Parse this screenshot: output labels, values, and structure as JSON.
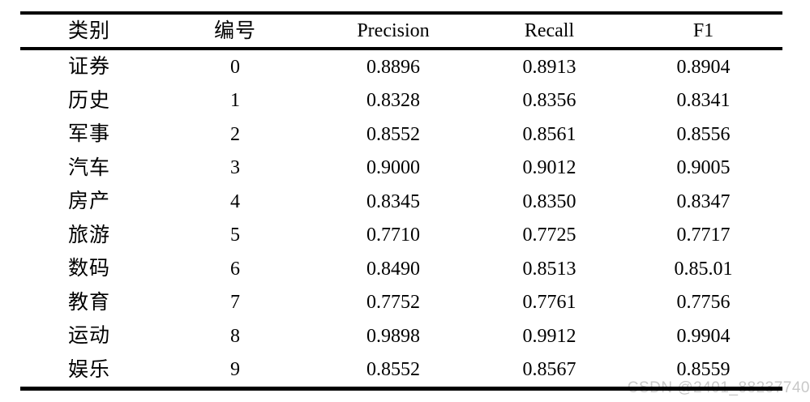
{
  "table": {
    "columns": [
      {
        "key": "category",
        "label": "类别"
      },
      {
        "key": "id",
        "label": "编号"
      },
      {
        "key": "precision",
        "label": "Precision"
      },
      {
        "key": "recall",
        "label": "Recall"
      },
      {
        "key": "f1",
        "label": "F1"
      }
    ],
    "rows": [
      {
        "category": "证券",
        "id": "0",
        "precision": "0.8896",
        "recall": "0.8913",
        "f1": "0.8904"
      },
      {
        "category": "历史",
        "id": "1",
        "precision": "0.8328",
        "recall": "0.8356",
        "f1": "0.8341"
      },
      {
        "category": "军事",
        "id": "2",
        "precision": "0.8552",
        "recall": "0.8561",
        "f1": "0.8556"
      },
      {
        "category": "汽车",
        "id": "3",
        "precision": "0.9000",
        "recall": "0.9012",
        "f1": "0.9005"
      },
      {
        "category": "房产",
        "id": "4",
        "precision": "0.8345",
        "recall": "0.8350",
        "f1": "0.8347"
      },
      {
        "category": "旅游",
        "id": "5",
        "precision": "0.7710",
        "recall": "0.7725",
        "f1": "0.7717"
      },
      {
        "category": "数码",
        "id": "6",
        "precision": "0.8490",
        "recall": "0.8513",
        "f1": "0.85.01"
      },
      {
        "category": "教育",
        "id": "7",
        "precision": "0.7752",
        "recall": "0.7761",
        "f1": "0.7756"
      },
      {
        "category": "运动",
        "id": "8",
        "precision": "0.9898",
        "recall": "0.9912",
        "f1": "0.9904"
      },
      {
        "category": "娱乐",
        "id": "9",
        "precision": "0.8552",
        "recall": "0.8567",
        "f1": "0.8559"
      }
    ]
  },
  "watermark": {
    "text": "CSDN @2401_88237740",
    "color": "#c8c8c8"
  },
  "colors": {
    "text": "#000000",
    "rule": "#000000",
    "background": "#ffffff"
  },
  "chart_data": {
    "type": "table",
    "title": "",
    "columns": [
      "类别",
      "编号",
      "Precision",
      "Recall",
      "F1"
    ],
    "rows": [
      [
        "证券",
        "0",
        "0.8896",
        "0.8913",
        "0.8904"
      ],
      [
        "历史",
        "1",
        "0.8328",
        "0.8356",
        "0.8341"
      ],
      [
        "军事",
        "2",
        "0.8552",
        "0.8561",
        "0.8556"
      ],
      [
        "汽车",
        "3",
        "0.9000",
        "0.9012",
        "0.9005"
      ],
      [
        "房产",
        "4",
        "0.8345",
        "0.8350",
        "0.8347"
      ],
      [
        "旅游",
        "5",
        "0.7710",
        "0.7725",
        "0.7717"
      ],
      [
        "数码",
        "6",
        "0.8490",
        "0.8513",
        "0.85.01"
      ],
      [
        "教育",
        "7",
        "0.7752",
        "0.7761",
        "0.7756"
      ],
      [
        "运动",
        "8",
        "0.9898",
        "0.9912",
        "0.9904"
      ],
      [
        "娱乐",
        "9",
        "0.8552",
        "0.8567",
        "0.8559"
      ]
    ]
  }
}
